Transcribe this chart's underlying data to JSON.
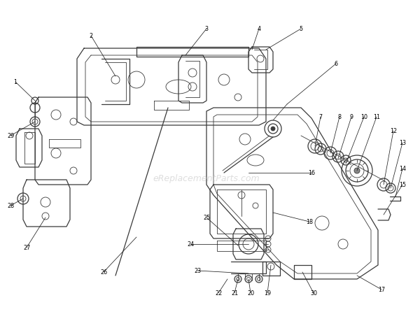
{
  "background_color": "#ffffff",
  "watermark": "eReplacementParts.com",
  "watermark_color": "#c8c8c8",
  "line_color": "#3a3a3a",
  "text_color": "#000000",
  "fig_width": 5.9,
  "fig_height": 4.6,
  "dpi": 100
}
